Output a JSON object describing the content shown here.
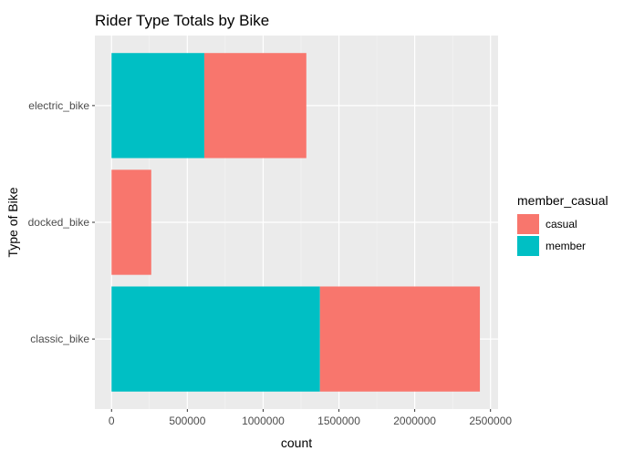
{
  "chart_data": {
    "type": "bar",
    "orientation": "horizontal",
    "stacked": true,
    "title": "Rider Type Totals by Bike",
    "xlabel": "count",
    "ylabel": "Type of Bike",
    "categories": [
      "classic_bike",
      "docked_bike",
      "electric_bike"
    ],
    "xlim": [
      -110000,
      2550000
    ],
    "x_ticks": [
      0,
      500000,
      1000000,
      1500000,
      2000000,
      2500000
    ],
    "x_tick_labels": [
      "0",
      "500000",
      "1000000",
      "1500000",
      "2000000",
      "2500000"
    ],
    "series": [
      {
        "name": "member",
        "color": "#00BFC4",
        "values": [
          1375000,
          0,
          612000
        ]
      },
      {
        "name": "casual",
        "color": "#F8766D",
        "values": [
          1055000,
          262000,
          673000
        ]
      }
    ],
    "legend": {
      "title": "member_casual",
      "position": "right",
      "entries": [
        "casual",
        "member"
      ]
    },
    "panel_background": "#EBEBEB",
    "grid": true
  }
}
